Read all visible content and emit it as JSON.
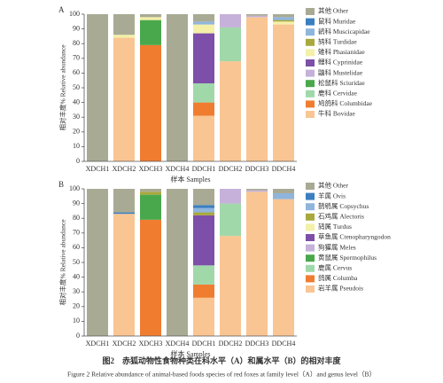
{
  "chart_data": [
    {
      "type": "bar",
      "stacked": true,
      "label": "A",
      "ylabel": "相对丰度% Relative abundance",
      "xlabel": "样本 Samples",
      "categories": [
        "XDCH1",
        "XDCH2",
        "XDCH3",
        "XDCH4",
        "DDCH1",
        "DDCH2",
        "DDCH3",
        "DDCH4"
      ],
      "ylim": [
        0,
        100
      ],
      "yticks": [
        0,
        10,
        20,
        30,
        40,
        50,
        60,
        70,
        80,
        90,
        100
      ],
      "series": [
        {
          "name": "其他 Other",
          "color": "#a9aa94",
          "values": [
            100,
            14,
            2,
            100,
            5,
            0,
            1,
            2
          ]
        },
        {
          "name": "鼠科 Muridae",
          "color": "#3b7fc0",
          "values": [
            0,
            0,
            0,
            0,
            0,
            0,
            0,
            0
          ]
        },
        {
          "name": "鹟科 Muscicapidae",
          "color": "#8fb5dc",
          "values": [
            0,
            0,
            0,
            0,
            2,
            0,
            0,
            2
          ]
        },
        {
          "name": "鸫科 Turdidae",
          "color": "#a9a83c",
          "values": [
            0,
            0,
            0,
            0,
            0,
            0,
            0,
            1
          ]
        },
        {
          "name": "雉科 Phasianidae",
          "color": "#f4f0a8",
          "values": [
            0,
            2,
            2,
            0,
            6,
            0,
            0,
            2
          ]
        },
        {
          "name": "鲤科 Cyprinidae",
          "color": "#7d4fa8",
          "values": [
            0,
            0,
            0,
            0,
            34,
            0,
            0,
            0
          ]
        },
        {
          "name": "鼬科 Mustelidae",
          "color": "#c5b1d9",
          "values": [
            0,
            0,
            0,
            0,
            0,
            9,
            1,
            0
          ]
        },
        {
          "name": "松鼠科 Sciuridae",
          "color": "#4aa84c",
          "values": [
            0,
            0,
            17,
            0,
            0,
            0,
            0,
            0
          ]
        },
        {
          "name": "鹿科 Cervidae",
          "color": "#a0d8aa",
          "values": [
            0,
            0,
            0,
            0,
            13,
            23,
            0,
            0
          ]
        },
        {
          "name": "鸠鸽科 Columbidae",
          "color": "#f07c30",
          "values": [
            0,
            0,
            79,
            0,
            9,
            0,
            0,
            0
          ]
        },
        {
          "name": "牛科 Bovidae",
          "color": "#f9c592",
          "values": [
            0,
            84,
            0,
            0,
            31,
            68,
            98,
            93
          ]
        }
      ]
    },
    {
      "type": "bar",
      "stacked": true,
      "label": "B",
      "ylabel": "相对丰度% Relative abundance",
      "xlabel": "样本 Samples",
      "categories": [
        "XDCH1",
        "XDCH2",
        "XDCH3",
        "XDCH4",
        "DDCH1",
        "DDCH2",
        "DDCH3",
        "DDCH4"
      ],
      "ylim": [
        0,
        100
      ],
      "yticks": [
        0,
        10,
        20,
        30,
        40,
        50,
        60,
        70,
        80,
        90,
        100
      ],
      "series": [
        {
          "name": "其他 Other",
          "color": "#a9aa94",
          "values": [
            100,
            16,
            2,
            100,
            11,
            0,
            1,
            3
          ]
        },
        {
          "name": "羊属 Ovis",
          "color": "#3b7fc0",
          "values": [
            0,
            1,
            0,
            0,
            2,
            0,
            0,
            0
          ]
        },
        {
          "name": "鹊鸲属 Copsychus",
          "color": "#8fb5dc",
          "values": [
            0,
            0,
            0,
            0,
            3,
            0,
            0,
            4
          ]
        },
        {
          "name": "石鸡属 Alectoris",
          "color": "#a9a83c",
          "values": [
            0,
            0,
            2,
            0,
            2,
            0,
            0,
            0
          ]
        },
        {
          "name": "鸫属 Turdus",
          "color": "#f4f0a8",
          "values": [
            0,
            0,
            0,
            0,
            0,
            0,
            0,
            0
          ]
        },
        {
          "name": "草鱼属 Ctenopharyngodon",
          "color": "#7d4fa8",
          "values": [
            0,
            0,
            0,
            0,
            34,
            0,
            0,
            0
          ]
        },
        {
          "name": "狗獾属 Meles",
          "color": "#c5b1d9",
          "values": [
            0,
            0,
            0,
            0,
            0,
            10,
            1,
            0
          ]
        },
        {
          "name": "黄鼠属 Spermophilus",
          "color": "#4aa84c",
          "values": [
            0,
            0,
            17,
            0,
            0,
            0,
            0,
            0
          ]
        },
        {
          "name": "鹿属 Cervus",
          "color": "#a0d8aa",
          "values": [
            0,
            0,
            0,
            0,
            13,
            22,
            0,
            0
          ]
        },
        {
          "name": "鸽属 Columba",
          "color": "#f07c30",
          "values": [
            0,
            0,
            79,
            0,
            9,
            0,
            0,
            0
          ]
        },
        {
          "name": "岩羊属 Pseudois",
          "color": "#f9c592",
          "values": [
            0,
            83,
            0,
            0,
            26,
            68,
            98,
            93
          ]
        }
      ]
    }
  ],
  "caption": {
    "zh": "图2　赤狐动物性食物种类在科水平（A）和属水平（B）的相对丰度",
    "en": "Figure 2  Relative abundance of animal-based foods species of red foxes at family level（A）and genus level（B）"
  }
}
